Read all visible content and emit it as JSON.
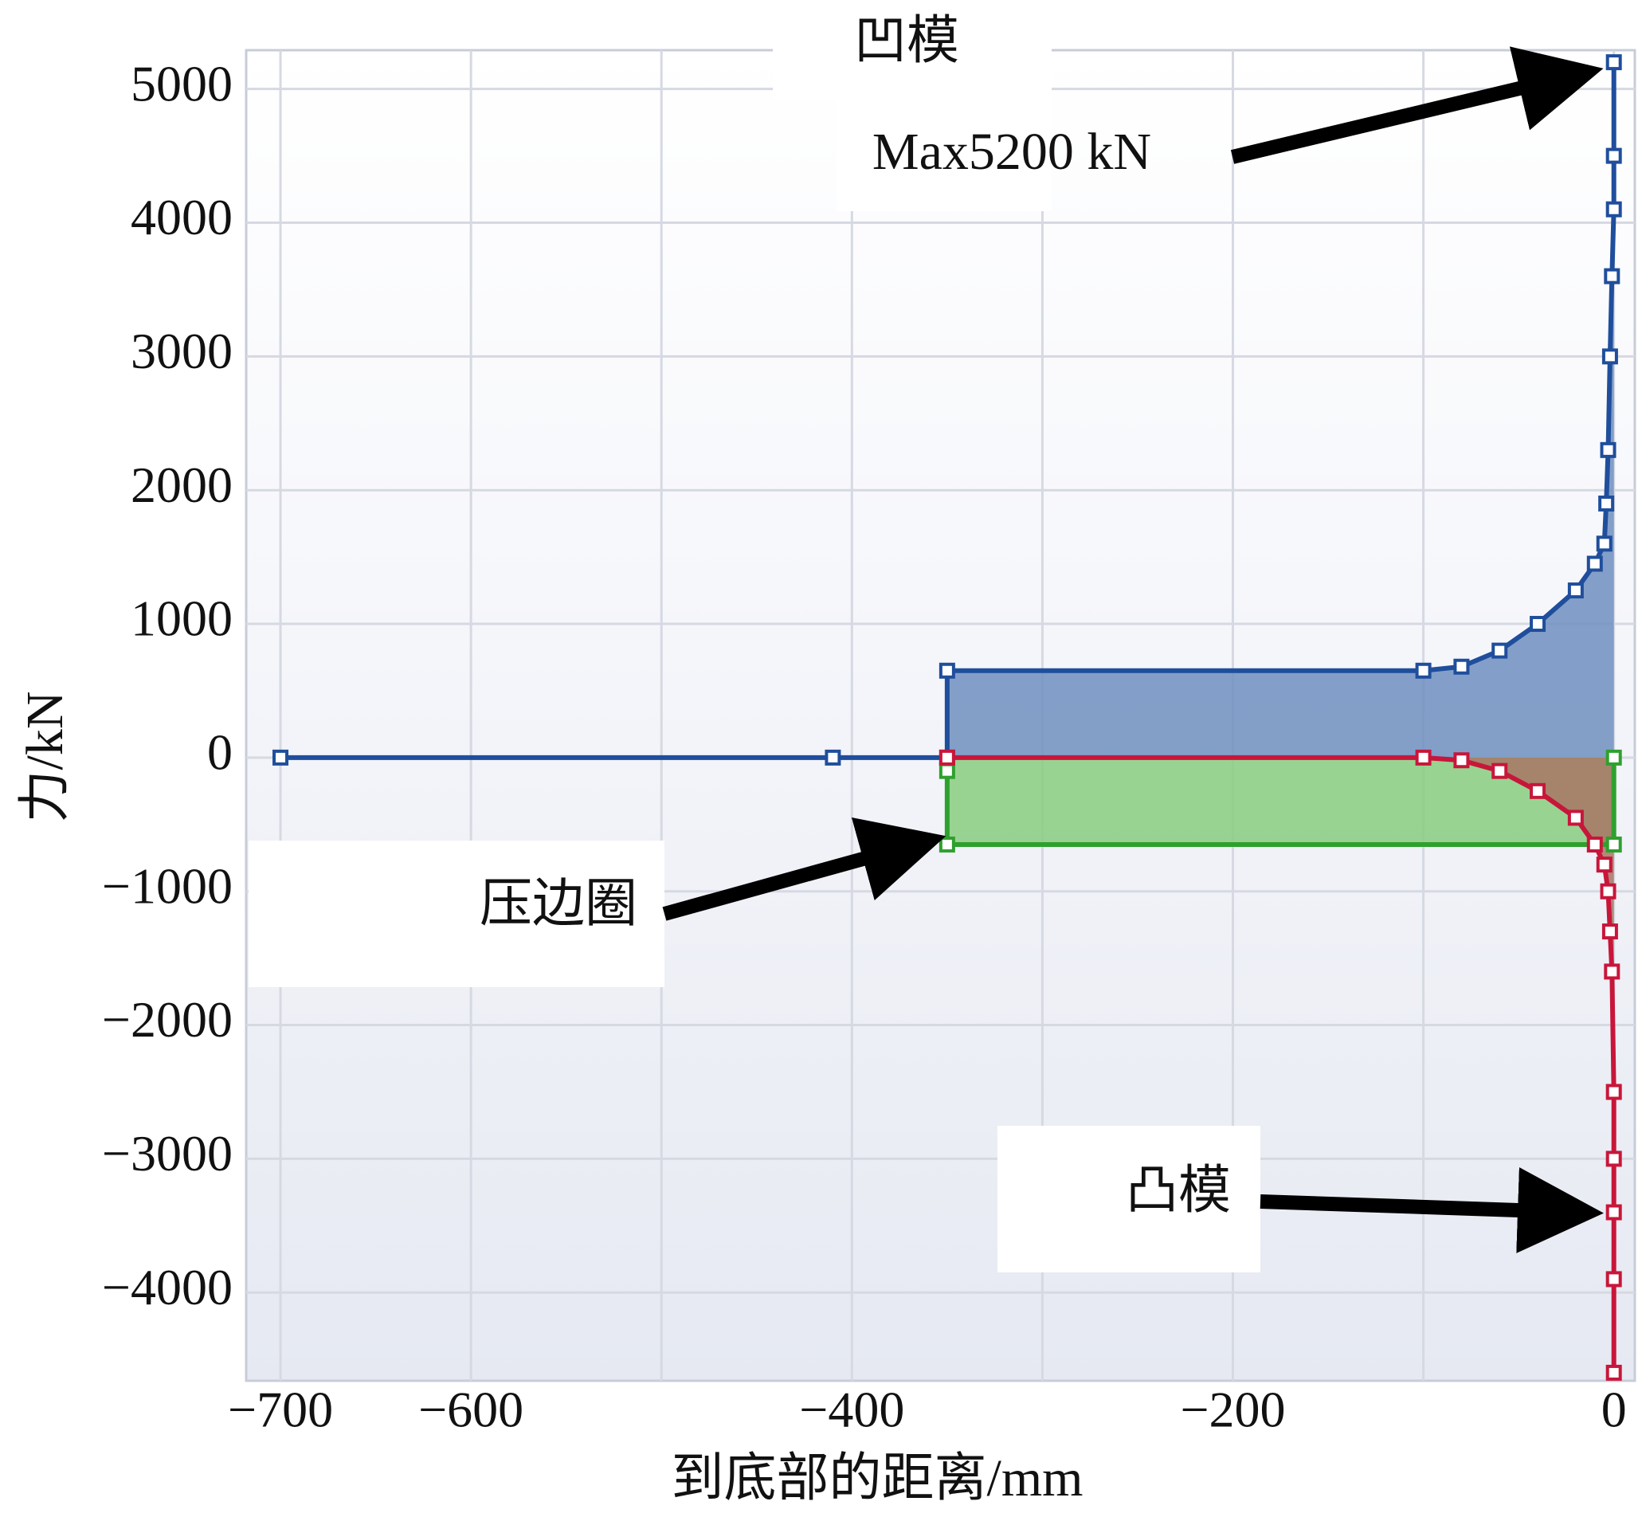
{
  "chart_data": {
    "type": "area",
    "x_label": "到底部的距离/mm",
    "y_label": "力/kN",
    "xlim": [
      -718,
      11
    ],
    "ylim": [
      -4660,
      5290
    ],
    "xticks": [
      {
        "value": -700,
        "label": "−700"
      },
      {
        "value": -600,
        "label": "−600"
      },
      {
        "value": -400,
        "label": "−400"
      },
      {
        "value": -200,
        "label": "−200"
      },
      0
    ],
    "xminor": [
      -500,
      -300,
      -100
    ],
    "yticks": [
      {
        "value": -4000,
        "label": "−4000"
      },
      {
        "value": -3000,
        "label": "−3000"
      },
      {
        "value": -2000,
        "label": "−2000"
      },
      {
        "value": -1000,
        "label": "−1000"
      },
      0,
      1000,
      2000,
      3000,
      4000,
      5000
    ],
    "grid": true,
    "series": [
      {
        "color": "#1f4e9c",
        "fill": "#6f8fc0",
        "x": [
          -700,
          -410,
          -350,
          -350,
          -100,
          -80,
          -60,
          -40,
          -20,
          -10,
          -5,
          -4,
          -3,
          -2,
          -1,
          0,
          0,
          0
        ],
        "values": [
          0,
          0,
          0,
          650,
          650,
          680,
          800,
          1000,
          1250,
          1450,
          1600,
          1900,
          2300,
          3000,
          3600,
          4100,
          4500,
          5200
        ]
      },
      {
        "color": "#2ea02e",
        "fill": "#88cc80",
        "x": [
          -350,
          -350,
          0,
          0
        ],
        "values": [
          -100,
          -650,
          -650,
          0
        ]
      },
      {
        "color": "#c8163a",
        "fill": "#a77564",
        "x": [
          -350,
          -100,
          -80,
          -60,
          -40,
          -20,
          -10,
          -5,
          -3,
          -2,
          -1,
          0,
          0,
          0,
          0,
          0
        ],
        "values": [
          0,
          0,
          -20,
          -100,
          -250,
          -450,
          -650,
          -800,
          -1000,
          -1300,
          -1600,
          -2500,
          -3000,
          -3400,
          -3900,
          -4600
        ]
      }
    ],
    "annotations": [
      "凹模",
      "Max5200 kN",
      "压边圈",
      "凸模"
    ]
  }
}
